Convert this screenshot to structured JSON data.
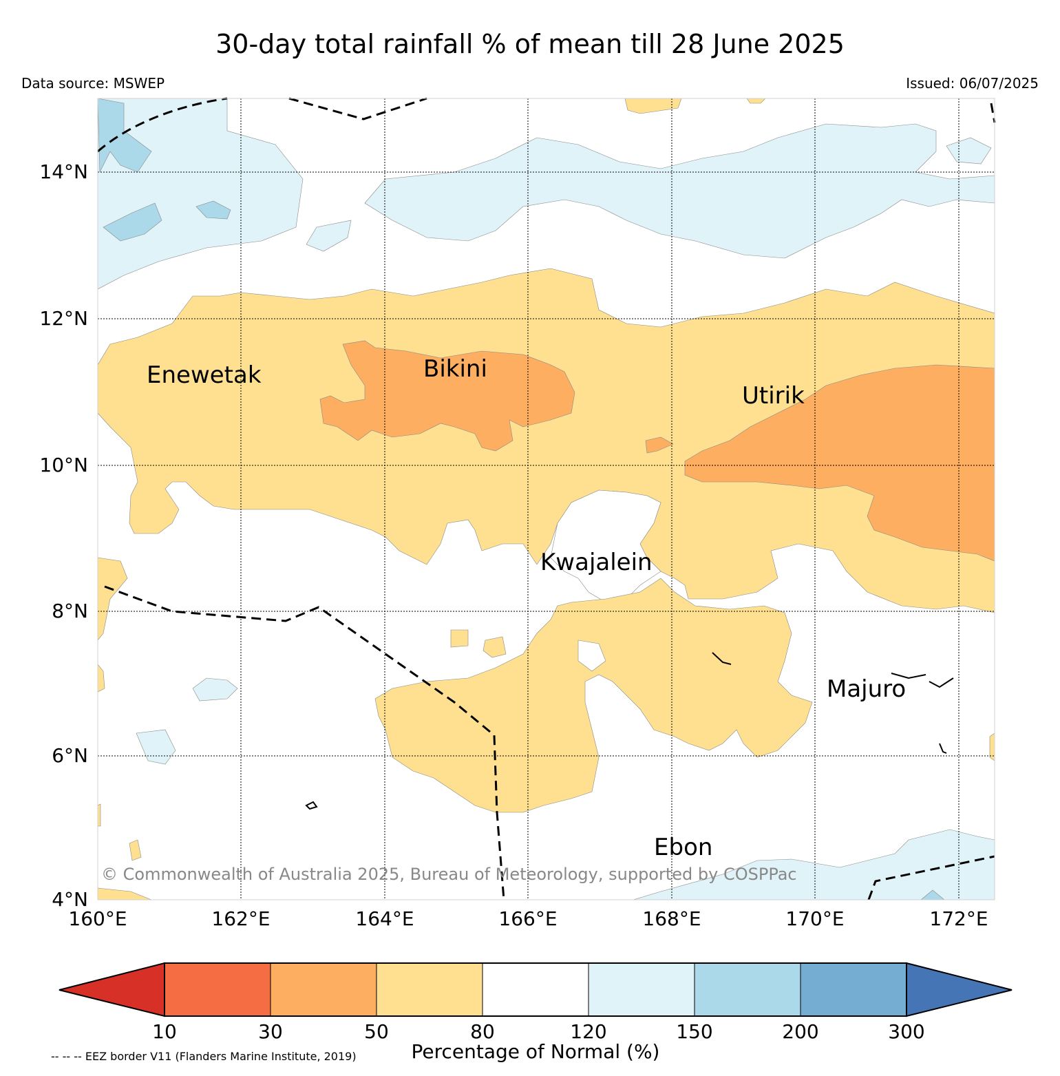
{
  "title": "30-day total rainfall % of mean till 28 June 2025",
  "data_source": "Data source: MSWEP",
  "issued": "Issued: 06/07/2025",
  "lat_labels": [
    "14°N",
    "12°N",
    "10°N",
    "8°N",
    "6°N",
    "4°N"
  ],
  "lon_labels": [
    "160°E",
    "162°E",
    "164°E",
    "166°E",
    "168°E",
    "170°E",
    "172°E"
  ],
  "places": {
    "enewetak": "Enewetak",
    "bikini": "Bikini",
    "utirik": "Utirik",
    "kwajalein": "Kwajalein",
    "majuro": "Majuro",
    "ebon": "Ebon"
  },
  "copyright": "© Commonwealth of Australia 2025, Bureau of Meteorology, supported by COSPPac",
  "colorbar": {
    "ticks": [
      "10",
      "30",
      "50",
      "80",
      "120",
      "150",
      "200",
      "300"
    ],
    "label": "Percentage of Normal (%)",
    "colors": [
      "#d73027",
      "#f46d43",
      "#fdae61",
      "#fee090",
      "#ffffff",
      "#e0f3f8",
      "#abd9e9",
      "#74add1",
      "#4575b4"
    ]
  },
  "eez_note": "-- -- -- EEZ border V11 (Flanders Marine Institute, 2019)"
}
